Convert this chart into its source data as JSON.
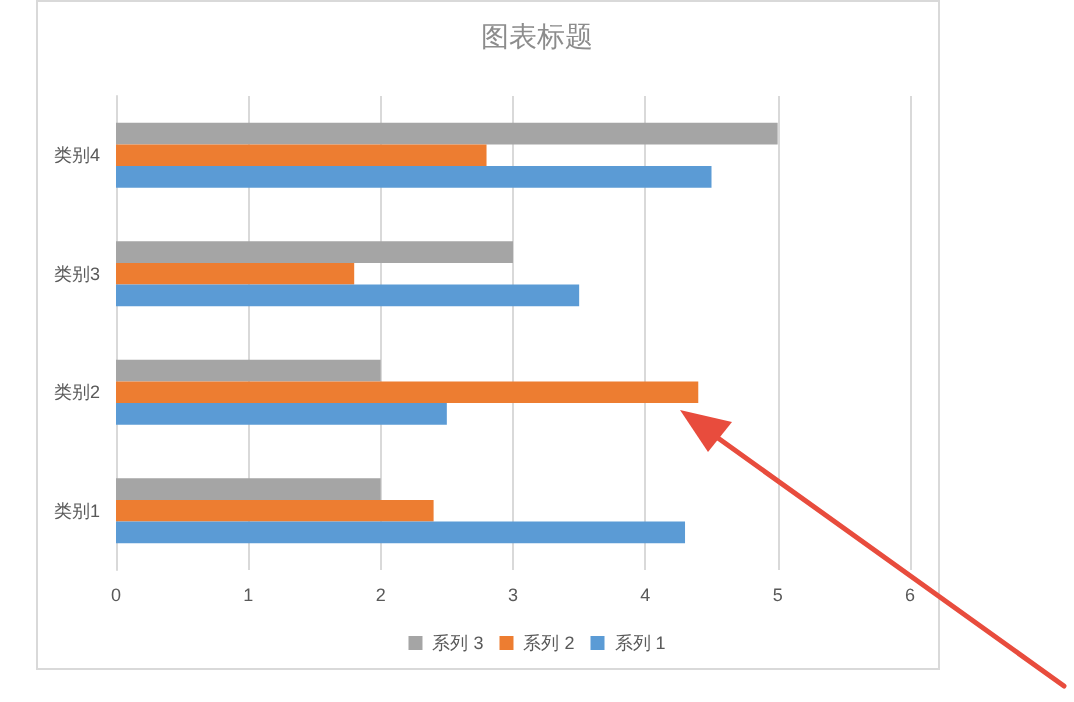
{
  "chart_data": {
    "type": "bar",
    "orientation": "horizontal",
    "title": "图表标题",
    "categories": [
      "类别4",
      "类别3",
      "类别2",
      "类别1"
    ],
    "series": [
      {
        "name": "系列 3",
        "color": "#a5a5a5",
        "values": [
          5,
          3,
          2,
          2
        ]
      },
      {
        "name": "系列 2",
        "color": "#ed7d31",
        "values": [
          2.8,
          1.8,
          4.4,
          2.4
        ]
      },
      {
        "name": "系列 1",
        "color": "#5b9bd5",
        "values": [
          4.5,
          3.5,
          2.5,
          4.3
        ]
      }
    ],
    "xlim": [
      0,
      6
    ],
    "xticks": [
      0,
      1,
      2,
      3,
      4,
      5,
      6
    ],
    "grid": "x",
    "legend": "bottom"
  }
}
